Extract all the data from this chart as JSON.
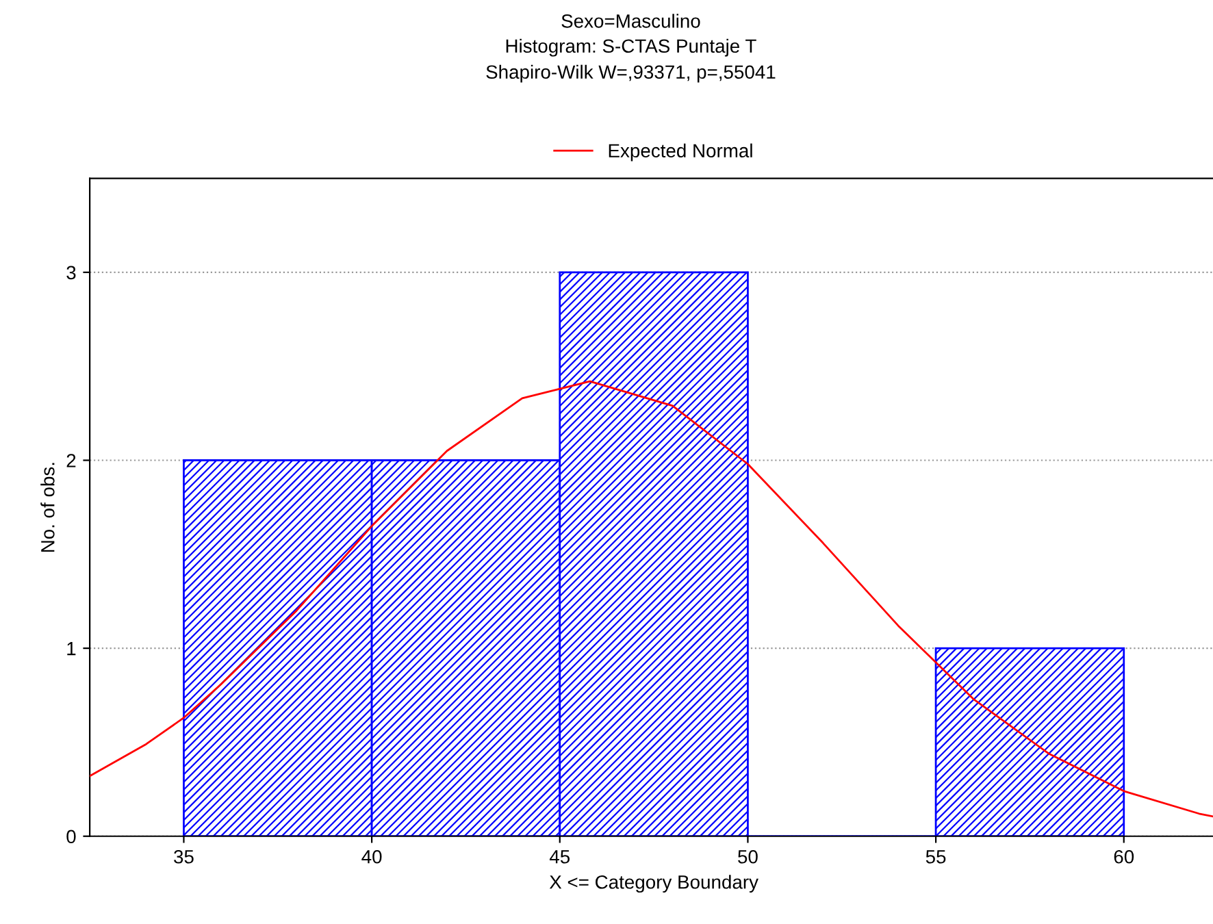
{
  "chart_data": {
    "type": "histogram",
    "title": "Sexo=Masculino",
    "subtitle": "Histogram: S-CTAS Puntaje T\nShapiro-Wilk W=,93371, p=,55041",
    "xlabel": "X <= Category Boundary",
    "ylabel": "No. of obs.",
    "bins": [
      35,
      40,
      45,
      50,
      55,
      60
    ],
    "values": [
      2,
      2,
      3,
      0,
      1
    ],
    "color": "#0000ff",
    "series": [
      {
        "name": "Expected Normal",
        "type": "line",
        "color": "#ff0000",
        "x": [
          32.5,
          34,
          35,
          36,
          38,
          40,
          42,
          44,
          45.8,
          48,
          50,
          52,
          54,
          56,
          58,
          60,
          62,
          62.5
        ],
        "values": [
          0.32,
          0.49,
          0.63,
          0.81,
          1.2,
          1.65,
          2.05,
          2.33,
          2.42,
          2.29,
          1.98,
          1.56,
          1.12,
          0.73,
          0.44,
          0.24,
          0.12,
          0.1
        ]
      }
    ],
    "xlim": [
      32.5,
      62.5
    ],
    "ylim": [
      0,
      3.5
    ],
    "xticks": [
      35,
      40,
      45,
      50,
      55,
      60
    ],
    "yticks": [
      0,
      1,
      2,
      3
    ],
    "grid": "y",
    "legend": "top",
    "marker": "none",
    "line_style": "solid"
  }
}
